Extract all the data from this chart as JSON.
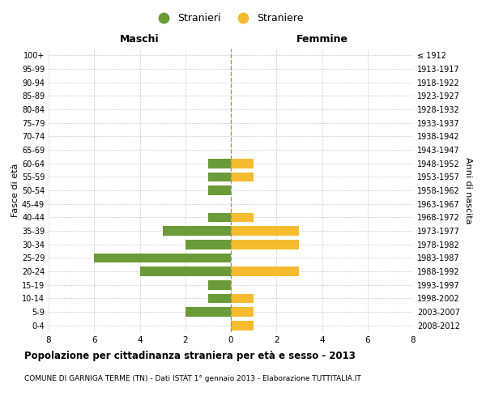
{
  "age_groups": [
    "0-4",
    "5-9",
    "10-14",
    "15-19",
    "20-24",
    "25-29",
    "30-34",
    "35-39",
    "40-44",
    "45-49",
    "50-54",
    "55-59",
    "60-64",
    "65-69",
    "70-74",
    "75-79",
    "80-84",
    "85-89",
    "90-94",
    "95-99",
    "100+"
  ],
  "birth_years": [
    "2008-2012",
    "2003-2007",
    "1998-2002",
    "1993-1997",
    "1988-1992",
    "1983-1987",
    "1978-1982",
    "1973-1977",
    "1968-1972",
    "1963-1967",
    "1958-1962",
    "1953-1957",
    "1948-1952",
    "1943-1947",
    "1938-1942",
    "1933-1937",
    "1928-1932",
    "1923-1927",
    "1918-1922",
    "1913-1917",
    "≤ 1912"
  ],
  "maschi": [
    0,
    2,
    1,
    1,
    4,
    6,
    2,
    3,
    1,
    0,
    1,
    1,
    1,
    0,
    0,
    0,
    0,
    0,
    0,
    0,
    0
  ],
  "femmine": [
    1,
    1,
    1,
    0,
    3,
    0,
    3,
    3,
    1,
    0,
    0,
    1,
    1,
    0,
    0,
    0,
    0,
    0,
    0,
    0,
    0
  ],
  "maschi_color": "#6b9a38",
  "femmine_color": "#f5bc2f",
  "background_color": "#ffffff",
  "grid_color": "#cccccc",
  "xlim": 8,
  "title": "Popolazione per cittadinanza straniera per età e sesso - 2013",
  "subtitle": "COMUNE DI GARNIGA TERME (TN) - Dati ISTAT 1° gennaio 2013 - Elaborazione TUTTITALIA.IT",
  "ylabel_left": "Fasce di età",
  "ylabel_right": "Anni di nascita",
  "legend_stranieri": "Stranieri",
  "legend_straniere": "Straniere",
  "maschi_label": "Maschi",
  "femmine_label": "Femmine",
  "bar_height": 0.7
}
